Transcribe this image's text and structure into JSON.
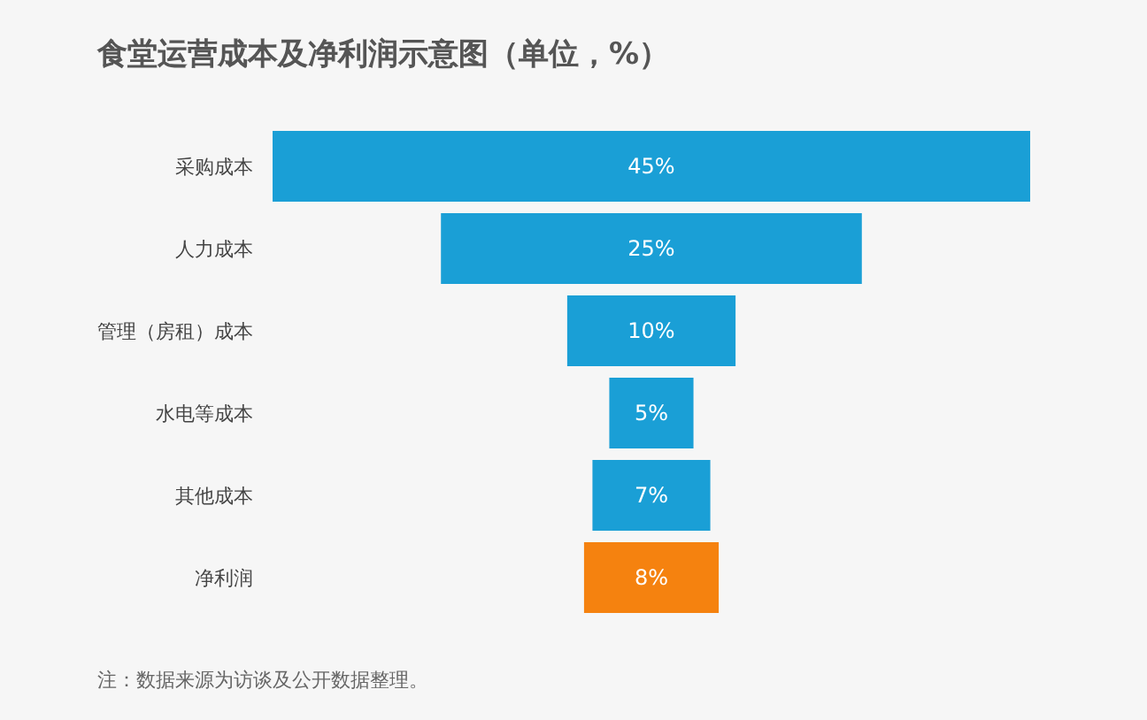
{
  "chart_data": {
    "type": "other",
    "title": "食堂运营成本及净利润示意图（单位，%）",
    "categories": [
      "采购成本",
      "人力成本",
      "管理（房租）成本",
      "水电等成本",
      "其他成本",
      "净利润"
    ],
    "values": [
      45,
      25,
      10,
      5,
      7,
      8
    ],
    "colors": [
      "#1a9fd6",
      "#1a9fd6",
      "#1a9fd6",
      "#1a9fd6",
      "#1a9fd6",
      "#f5820f"
    ],
    "value_labels": [
      "45%",
      "25%",
      "10%",
      "5%",
      "7%",
      "8%"
    ],
    "annotations": [
      "注：数据来源为访谈及公开数据整理。"
    ]
  }
}
